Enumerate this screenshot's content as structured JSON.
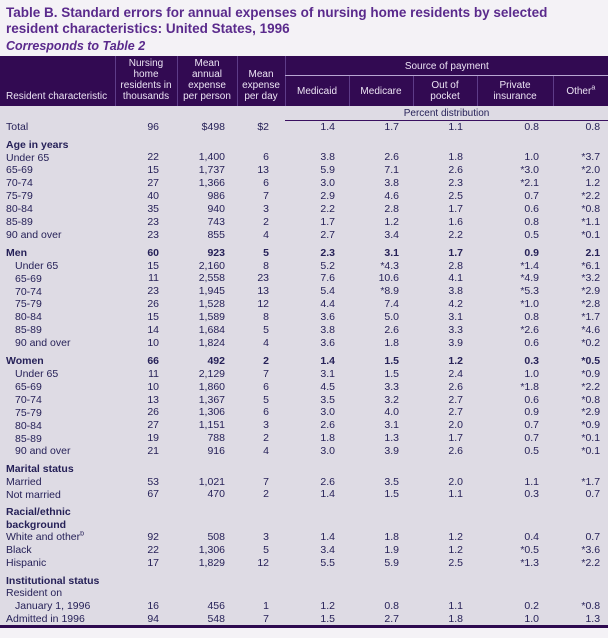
{
  "colors": {
    "header_bg": "#320a52",
    "title_purple": "#5a2a8c",
    "body_bg": "#dedbe4",
    "text": "#262158",
    "rule_dark": "#3a1060"
  },
  "title": {
    "main": "Table B.  Standard errors for annual expenses of nursing home residents by selected resident characteristics: United States, 1996",
    "subtitle": "Corresponds to Table 2"
  },
  "table": {
    "header": {
      "resident": "Resident characteristic",
      "residents": "Nursing home residents in thousands",
      "mean_annual": "Mean annual expense per person",
      "mean_day": "Mean expense per day",
      "source_of_payment": "Source of payment",
      "payment_cols": [
        "Medicaid",
        "Medicare",
        "Out of pocket",
        "Private insurance"
      ],
      "other_label": "Other",
      "other_sup": "a",
      "percent_distribution": "Percent distribution"
    },
    "rows": [
      {
        "type": "data",
        "label": "Total",
        "indent": 0,
        "values": [
          "96",
          "$498",
          "$2",
          "1.4",
          "1.7",
          "1.1",
          "0.8",
          "0.8"
        ]
      },
      {
        "type": "spacer"
      },
      {
        "type": "section",
        "label": "Age in years",
        "indent": 0
      },
      {
        "type": "data",
        "label": "Under 65",
        "indent": 0,
        "values": [
          "22",
          "1,400",
          "6",
          "3.8",
          "2.6",
          "1.8",
          "1.0",
          "*3.7"
        ]
      },
      {
        "type": "data",
        "label": "65-69",
        "indent": 0,
        "values": [
          "15",
          "1,737",
          "13",
          "5.9",
          "7.1",
          "2.6",
          "*3.0",
          "*2.0"
        ]
      },
      {
        "type": "data",
        "label": "70-74",
        "indent": 0,
        "values": [
          "27",
          "1,366",
          "6",
          "3.0",
          "3.8",
          "2.3",
          "*2.1",
          "1.2"
        ]
      },
      {
        "type": "data",
        "label": "75-79",
        "indent": 0,
        "values": [
          "40",
          "986",
          "7",
          "2.9",
          "4.6",
          "2.5",
          "0.7",
          "*2.2"
        ]
      },
      {
        "type": "data",
        "label": "80-84",
        "indent": 0,
        "values": [
          "35",
          "940",
          "3",
          "2.2",
          "2.8",
          "1.7",
          "0.6",
          "*0.8"
        ]
      },
      {
        "type": "data",
        "label": "85-89",
        "indent": 0,
        "values": [
          "23",
          "743",
          "2",
          "1.7",
          "1.2",
          "1.6",
          "0.8",
          "*1.1"
        ]
      },
      {
        "type": "data",
        "label": "90 and over",
        "indent": 0,
        "values": [
          "23",
          "855",
          "4",
          "2.7",
          "3.4",
          "2.2",
          "0.5",
          "*0.1"
        ]
      },
      {
        "type": "spacer"
      },
      {
        "type": "data",
        "label": "Men",
        "indent": 0,
        "bold": true,
        "values": [
          "60",
          "923",
          "5",
          "2.3",
          "3.1",
          "1.7",
          "0.9",
          "2.1"
        ]
      },
      {
        "type": "data",
        "label": "Under 65",
        "indent": 1,
        "values": [
          "15",
          "2,160",
          "8",
          "5.2",
          "*4.3",
          "2.8",
          "*1.4",
          "*6.1"
        ]
      },
      {
        "type": "data",
        "label": "65-69",
        "indent": 1,
        "values": [
          "11",
          "2,558",
          "23",
          "7.6",
          "10.6",
          "4.1",
          "*4.9",
          "*3.2"
        ]
      },
      {
        "type": "data",
        "label": "70-74",
        "indent": 1,
        "values": [
          "23",
          "1,945",
          "13",
          "5.4",
          "*8.9",
          "3.8",
          "*5.3",
          "*2.9"
        ]
      },
      {
        "type": "data",
        "label": "75-79",
        "indent": 1,
        "values": [
          "26",
          "1,528",
          "12",
          "4.4",
          "7.4",
          "4.2",
          "*1.0",
          "*2.8"
        ]
      },
      {
        "type": "data",
        "label": "80-84",
        "indent": 1,
        "values": [
          "15",
          "1,589",
          "8",
          "3.6",
          "5.0",
          "3.1",
          "0.8",
          "*1.7"
        ]
      },
      {
        "type": "data",
        "label": "85-89",
        "indent": 1,
        "values": [
          "14",
          "1,684",
          "5",
          "3.8",
          "2.6",
          "3.3",
          "*2.6",
          "*4.6"
        ]
      },
      {
        "type": "data",
        "label": "90 and over",
        "indent": 1,
        "values": [
          "10",
          "1,824",
          "4",
          "3.6",
          "1.8",
          "3.9",
          "0.6",
          "*0.2"
        ]
      },
      {
        "type": "spacer"
      },
      {
        "type": "data",
        "label": "Women",
        "indent": 0,
        "bold": true,
        "values": [
          "66",
          "492",
          "2",
          "1.4",
          "1.5",
          "1.2",
          "0.3",
          "*0.5"
        ]
      },
      {
        "type": "data",
        "label": "Under 65",
        "indent": 1,
        "values": [
          "11",
          "2,129",
          "7",
          "3.1",
          "1.5",
          "2.4",
          "1.0",
          "*0.9"
        ]
      },
      {
        "type": "data",
        "label": "65-69",
        "indent": 1,
        "values": [
          "10",
          "1,860",
          "6",
          "4.5",
          "3.3",
          "2.6",
          "*1.8",
          "*2.2"
        ]
      },
      {
        "type": "data",
        "label": "70-74",
        "indent": 1,
        "values": [
          "13",
          "1,367",
          "5",
          "3.5",
          "3.2",
          "2.7",
          "0.6",
          "*0.8"
        ]
      },
      {
        "type": "data",
        "label": "75-79",
        "indent": 1,
        "values": [
          "26",
          "1,306",
          "6",
          "3.0",
          "4.0",
          "2.7",
          "0.9",
          "*2.9"
        ]
      },
      {
        "type": "data",
        "label": "80-84",
        "indent": 1,
        "values": [
          "27",
          "1,151",
          "3",
          "2.6",
          "3.1",
          "2.0",
          "0.7",
          "*0.9"
        ]
      },
      {
        "type": "data",
        "label": "85-89",
        "indent": 1,
        "values": [
          "19",
          "788",
          "2",
          "1.8",
          "1.3",
          "1.7",
          "0.7",
          "*0.1"
        ]
      },
      {
        "type": "data",
        "label": "90 and over",
        "indent": 1,
        "values": [
          "21",
          "916",
          "4",
          "3.0",
          "3.9",
          "2.6",
          "0.5",
          "*0.1"
        ]
      },
      {
        "type": "spacer"
      },
      {
        "type": "section",
        "label": "Marital status",
        "indent": 0
      },
      {
        "type": "data",
        "label": "Married",
        "indent": 0,
        "values": [
          "53",
          "1,021",
          "7",
          "2.6",
          "3.5",
          "2.0",
          "1.1",
          "*1.7"
        ]
      },
      {
        "type": "data",
        "label": "Not married",
        "indent": 0,
        "values": [
          "67",
          "470",
          "2",
          "1.4",
          "1.5",
          "1.1",
          "0.3",
          "0.7"
        ]
      },
      {
        "type": "spacer"
      },
      {
        "type": "section",
        "label": "Racial/ethnic background",
        "indent": 0
      },
      {
        "type": "data",
        "label": "White and other",
        "sup": "b",
        "indent": 0,
        "values": [
          "92",
          "508",
          "3",
          "1.4",
          "1.8",
          "1.2",
          "0.4",
          "0.7"
        ]
      },
      {
        "type": "data",
        "label": "Black",
        "indent": 0,
        "values": [
          "22",
          "1,306",
          "5",
          "3.4",
          "1.9",
          "1.2",
          "*0.5",
          "*3.6"
        ]
      },
      {
        "type": "data",
        "label": "Hispanic",
        "indent": 0,
        "values": [
          "17",
          "1,829",
          "12",
          "5.5",
          "5.9",
          "2.5",
          "*1.3",
          "*2.2"
        ]
      },
      {
        "type": "spacer"
      },
      {
        "type": "section",
        "label": "Institutional status",
        "indent": 0
      },
      {
        "type": "label",
        "label": "Resident on",
        "indent": 0
      },
      {
        "type": "data",
        "label": "January 1, 1996",
        "indent": 1,
        "values": [
          "16",
          "456",
          "1",
          "1.2",
          "0.8",
          "1.1",
          "0.2",
          "*0.8"
        ]
      },
      {
        "type": "data",
        "label": "Admitted in 1996",
        "indent": 0,
        "values": [
          "94",
          "548",
          "7",
          "1.5",
          "2.7",
          "1.8",
          "1.0",
          "1.3"
        ]
      }
    ]
  }
}
